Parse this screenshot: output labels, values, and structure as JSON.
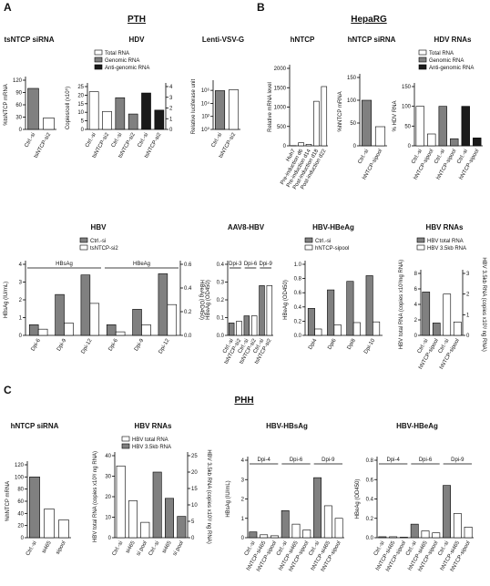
{
  "figure": {
    "panels": [
      {
        "letter": "A",
        "title": "PTH"
      },
      {
        "letter": "B",
        "title": "HepaRG"
      },
      {
        "letter": "C",
        "title": "PHH"
      }
    ]
  },
  "chart_data": [
    {
      "type": "bar",
      "title": "tsNTCP siRNA",
      "ylabel": "%tsNTCP mRNA",
      "categories": [
        "Ctrl.-si",
        "tsNTCP-si2"
      ],
      "values": [
        100,
        28
      ],
      "colors": [
        "#808080",
        "#ffffff"
      ],
      "ylim": [
        0,
        120
      ],
      "yticks": [
        0,
        30,
        60,
        90,
        120
      ]
    },
    {
      "type": "bar",
      "title": "HDV",
      "ylabel": "Copies/cell (x10⁵)",
      "categories": [
        "Ctrl.-si",
        "tsNTCP-si2",
        "Ctrl.-si",
        "tsNTCP-si2",
        "Ctrl.-si",
        "tsNTCP-si2"
      ],
      "series": [
        {
          "name": "Total RNA",
          "color": "#ffffff",
          "values": [
            22,
            10.5,
            null,
            null,
            null,
            null
          ]
        },
        {
          "name": "Genomic RNA",
          "color": "#808080",
          "values": [
            null,
            null,
            18.5,
            9,
            null,
            null
          ]
        },
        {
          "name": "Anti-genomic RNA",
          "color": "#1a1a1a",
          "axis": "y2",
          "values": [
            null,
            null,
            null,
            null,
            3.4,
            1.8
          ]
        }
      ],
      "ylim": [
        0,
        25
      ],
      "yticks": [
        0,
        5,
        10,
        15,
        20,
        25
      ],
      "y2lim": [
        0,
        4
      ],
      "y2ticks": [
        0,
        1,
        2,
        3,
        4
      ]
    },
    {
      "type": "bar",
      "title": "Lenti-VSV-G",
      "ylabel": "Relative luciferase unit",
      "categories": [
        "Ctrl.-si",
        "tsNTCP-si2"
      ],
      "values": [
        900000,
        1200000
      ],
      "colors": [
        "#808080",
        "#ffffff"
      ],
      "log": true,
      "ylim": [
        1,
        10000000
      ],
      "yticks": [
        {
          "value": 1,
          "label": "10⁰"
        },
        {
          "value": 100,
          "label": "10²"
        },
        {
          "value": 10000,
          "label": "10⁴"
        },
        {
          "value": 1000000,
          "label": "10⁶"
        }
      ]
    },
    {
      "type": "bar",
      "title": "hNTCP",
      "ylabel": "Relative mRNA level",
      "categories": [
        "Huh7",
        "Pre-induction d6",
        "Pre-induction d14",
        "Post-induction d18",
        "Post-induction d22"
      ],
      "values": [
        5,
        80,
        40,
        1150,
        1530
      ],
      "colors": [
        "#ffffff",
        "#ffffff",
        "#ffffff",
        "#ffffff",
        "#ffffff"
      ],
      "ylim": [
        0,
        2000
      ],
      "yticks": [
        0,
        500,
        1000,
        1500,
        2000
      ]
    },
    {
      "type": "bar",
      "title": "hNTCP siRNA",
      "ylabel": "%hNTCP mRNA",
      "categories": [
        "Ctrl.-si",
        "hNTCP-sipool"
      ],
      "values": [
        100,
        42
      ],
      "colors": [
        "#808080",
        "#ffffff"
      ],
      "ylim": [
        0,
        150
      ],
      "yticks": [
        0,
        50,
        100,
        150
      ]
    },
    {
      "type": "bar",
      "title": "HDV RNAs",
      "ylabel": "% HDV RNA",
      "categories": [
        "Ctrl.-si",
        "hNTCP-sipool",
        "Ctrl.-si",
        "hNTCP-sipool",
        "Ctrl.-si",
        "hNTCP-sipool"
      ],
      "series": [
        {
          "name": "Total RNA",
          "color": "#ffffff",
          "values": [
            100,
            30,
            null,
            null,
            null,
            null
          ]
        },
        {
          "name": "Genomic RNA",
          "color": "#808080",
          "values": [
            null,
            null,
            100,
            18,
            null,
            null
          ]
        },
        {
          "name": "Anti-genomic RNA",
          "color": "#1a1a1a",
          "values": [
            null,
            null,
            null,
            null,
            100,
            20
          ]
        }
      ],
      "ylim": [
        0,
        150
      ],
      "yticks": [
        0,
        50,
        100,
        150
      ]
    },
    {
      "type": "bar",
      "title": "HBV",
      "ylabel": "HBsAg (IU/mL)",
      "y2label": "HBeAg (OD450)",
      "groups": [
        "HBsAg",
        "HBeAg"
      ],
      "categories": [
        "Dpi-6",
        "Dpi-9",
        "Dpi-12",
        "Dpi-6",
        "Dpi-9",
        "Dpi-12"
      ],
      "series": [
        {
          "name": "Ctrl.-si",
          "color": "#808080",
          "values": [
            0.6,
            2.3,
            3.4,
            null,
            null,
            null
          ]
        },
        {
          "name": "tsNTCP-si2",
          "color": "#ffffff",
          "values": [
            0.35,
            0.7,
            1.8,
            null,
            null,
            null
          ]
        },
        {
          "color": "#808080",
          "axis": "y2",
          "values": [
            null,
            null,
            null,
            0.09,
            0.22,
            0.52
          ]
        },
        {
          "color": "#ffffff",
          "axis": "y2",
          "values": [
            null,
            null,
            null,
            0.03,
            0.09,
            0.26
          ]
        }
      ],
      "ylim": [
        0,
        4
      ],
      "yticks": [
        0,
        1,
        2,
        3,
        4
      ],
      "y2lim": [
        0,
        0.6
      ],
      "y2ticks": [
        {
          "value": 0,
          "label": "0.0"
        },
        0.2,
        0.4,
        0.6
      ]
    },
    {
      "type": "bar",
      "title": "AAV8-HBV",
      "ylabel": "HBeAg (OD450)",
      "groups": [
        "Dpi-3",
        "Dpi-6",
        "Dpi-9"
      ],
      "categories": [
        "Ctrl.-si",
        "tsNTCP-si2",
        "Ctrl.-si",
        "tsNTCP-si2",
        "Ctrl.-si",
        "tsNTCP-si2"
      ],
      "values": [
        0.07,
        0.08,
        0.11,
        0.11,
        0.28,
        0.28
      ],
      "colors": [
        "#808080",
        "#ffffff",
        "#808080",
        "#ffffff",
        "#808080",
        "#ffffff"
      ],
      "ylim": [
        0,
        0.4
      ],
      "yticks": [
        {
          "value": 0,
          "label": "0.0"
        },
        0.1,
        0.2,
        0.3,
        0.4
      ]
    },
    {
      "type": "bar",
      "title": "HBV-HBeAg",
      "ylabel": "HBeAg (OD450)",
      "categories": [
        "Dpi4",
        "Dpi6",
        "Dpi8",
        "Dpi-10"
      ],
      "series": [
        {
          "name": "Ctrl.-si",
          "color": "#808080",
          "values": [
            0.38,
            0.64,
            0.76,
            0.84
          ]
        },
        {
          "name": "hNTCP-sipool",
          "color": "#ffffff",
          "values": [
            0.09,
            0.15,
            0.18,
            0.19
          ]
        }
      ],
      "ylim": [
        0,
        1
      ],
      "yticks": [
        {
          "value": 0,
          "label": "0.0"
        },
        0.2,
        0.4,
        0.6,
        0.8,
        {
          "value": 1,
          "label": "1.0"
        }
      ]
    },
    {
      "type": "bar",
      "title": "HBV RNAs",
      "ylabel": "HBV total RNA (copies x10³/ng RNA)",
      "y2label": "HBV 3.5kb RNA (copies x10³/ ng RNA)",
      "categories": [
        "Ctrl.-si",
        "hNTCP-sipool",
        "Ctrl.-si",
        "hNTCP-sipool"
      ],
      "series": [
        {
          "name": "HBV total RNA",
          "color": "#808080",
          "values": [
            5.6,
            1.6,
            null,
            null
          ]
        },
        {
          "name": "HBV 3.5kb RNA",
          "color": "#ffffff",
          "axis": "y2",
          "values": [
            null,
            null,
            2,
            0.65
          ]
        }
      ],
      "ylim": [
        0,
        8
      ],
      "yticks": [
        0,
        2,
        4,
        6,
        8
      ],
      "y2lim": [
        0,
        3
      ],
      "y2ticks": [
        0,
        1,
        2,
        3
      ]
    },
    {
      "type": "bar",
      "title": "hNTCP siRNA",
      "ylabel": "%hNTCP mRNA",
      "categories": [
        "Ctrl.-si",
        "si465",
        "sipool"
      ],
      "values": [
        100,
        47,
        29
      ],
      "colors": [
        "#808080",
        "#ffffff",
        "#ffffff"
      ],
      "ylim": [
        0,
        120
      ],
      "yticks": [
        0,
        20,
        40,
        60,
        80,
        100,
        120
      ]
    },
    {
      "type": "bar",
      "title": "HBV RNAs",
      "ylabel": "HBV total RNA (copies x10³/ ng RNA)",
      "y2label": "HBV 3.5kb RNA (copies x10³/ ng RNA)",
      "categories": [
        "Ctrl.-si",
        "si465",
        "si pool",
        "Ctrl.-si",
        "si465",
        "si pool"
      ],
      "series": [
        {
          "name": "HBV total RNA",
          "color": "#ffffff",
          "values": [
            35,
            18,
            7.5,
            null,
            null,
            null
          ]
        },
        {
          "name": "HBV 3.5kb RNA",
          "color": "#808080",
          "axis": "y2",
          "values": [
            null,
            null,
            null,
            20,
            12,
            6.5
          ]
        }
      ],
      "ylim": [
        0,
        40
      ],
      "yticks": [
        0,
        10,
        20,
        30,
        40
      ],
      "y2lim": [
        0,
        25
      ],
      "y2ticks": [
        0,
        5,
        10,
        15,
        20,
        25
      ]
    },
    {
      "type": "bar",
      "title": "HBV-HBsAg",
      "ylabel": "HBsAg (IU/mL)",
      "groups": [
        "Dpi-4",
        "Dpi-6",
        "Dpi-9"
      ],
      "categories": [
        "Ctrl.-si",
        "hNTCP-si465",
        "hNTCP-sipool",
        "Ctrl.-si",
        "hNTCP-si465",
        "hNTCP-sipool",
        "Ctrl.-si",
        "hNTCP-si465",
        "hNTCP-sipool"
      ],
      "values": [
        0.3,
        0.15,
        0.1,
        1.4,
        0.7,
        0.4,
        3.1,
        1.65,
        1.0
      ],
      "colors": [
        "#808080",
        "#ffffff",
        "#ffffff",
        "#808080",
        "#ffffff",
        "#ffffff",
        "#808080",
        "#ffffff",
        "#ffffff"
      ],
      "ylim": [
        0,
        4
      ],
      "yticks": [
        0,
        1,
        2,
        3,
        4
      ]
    },
    {
      "type": "bar",
      "title": "HBV-HBeAg",
      "ylabel": "HBeAg (OD450)",
      "groups": [
        "Dpi-4",
        "Dpi-6",
        "Dpi-9"
      ],
      "categories": [
        "Ctrl.-si",
        "hNTCP-si465",
        "hNTCP-sipool",
        "Ctrl.-si",
        "hNTCP-si465",
        "hNTCP-sipool",
        "Ctrl.-si",
        "hNTCP-si465",
        "hNTCP-sipool"
      ],
      "values": [
        0.01,
        0.01,
        0.005,
        0.14,
        0.07,
        0.05,
        0.54,
        0.25,
        0.11
      ],
      "colors": [
        "#808080",
        "#ffffff",
        "#ffffff",
        "#808080",
        "#ffffff",
        "#ffffff",
        "#808080",
        "#ffffff",
        "#ffffff"
      ],
      "ylim": [
        0,
        0.8
      ],
      "yticks": [
        {
          "value": 0,
          "label": "0.0"
        },
        0.2,
        0.4,
        0.6,
        0.8
      ]
    }
  ]
}
